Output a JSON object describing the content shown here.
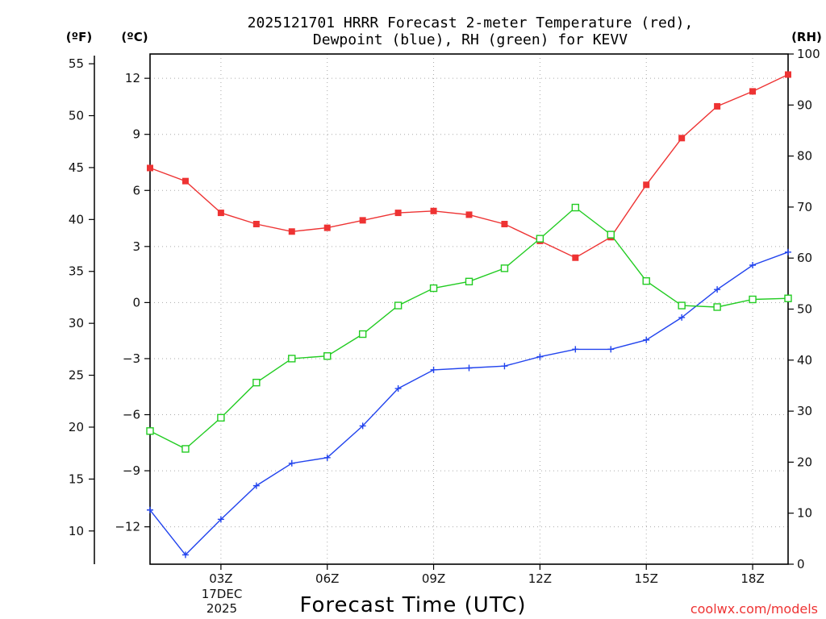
{
  "chart_data": {
    "type": "line",
    "title_line1": "2025121701 HRRR Forecast 2-meter Temperature (red),",
    "title_line2": "Dewpoint (blue), RH (green) for KEVV",
    "xlabel": "Forecast Time (UTC)",
    "credit": "coolwx.com/models",
    "axis_units": {
      "left_outer": "(ºF)",
      "left_inner": "(ºC)",
      "right": "(RH)"
    },
    "x": [
      1,
      2,
      3,
      4,
      5,
      6,
      7,
      8,
      9,
      10,
      11,
      12,
      13,
      14,
      15,
      16,
      17,
      18,
      19
    ],
    "xlim": [
      1,
      19
    ],
    "x_ticks": [
      {
        "x": 3,
        "label": "03Z"
      },
      {
        "x": 6,
        "label": "06Z"
      },
      {
        "x": 9,
        "label": "09Z"
      },
      {
        "x": 12,
        "label": "12Z"
      },
      {
        "x": 15,
        "label": "15Z"
      },
      {
        "x": 18,
        "label": "18Z"
      }
    ],
    "date_label": [
      "17DEC",
      "2025"
    ],
    "ylim_c": [
      -14.0,
      13.3
    ],
    "y_ticks_c": [
      12,
      9,
      6,
      3,
      0,
      -3,
      -6,
      -9,
      -12
    ],
    "y_tick_labels_c": [
      "12",
      "9",
      "6",
      "3",
      "0",
      "−3",
      "−6",
      "−9",
      "−12"
    ],
    "y_ticks_f": [
      55,
      50,
      45,
      40,
      35,
      30,
      25,
      20,
      15,
      10
    ],
    "ylim_rh": [
      0,
      100
    ],
    "y_ticks_rh": [
      0,
      10,
      20,
      30,
      40,
      50,
      60,
      70,
      80,
      90,
      100
    ],
    "series": [
      {
        "name": "Temperature",
        "axis": "c",
        "color": "#ee3333",
        "marker": "filled-square",
        "values": [
          7.2,
          6.5,
          4.8,
          4.2,
          3.8,
          4.0,
          4.4,
          4.8,
          4.9,
          4.7,
          4.2,
          3.3,
          2.4,
          3.5,
          6.3,
          8.8,
          10.5,
          11.3,
          12.2
        ]
      },
      {
        "name": "Dewpoint",
        "axis": "c",
        "color": "#2244ee",
        "marker": "plus",
        "values": [
          -11.1,
          -13.5,
          -11.6,
          -9.8,
          -8.6,
          -8.3,
          -6.6,
          -4.6,
          -3.6,
          -3.5,
          -3.4,
          -2.9,
          -2.5,
          -2.5,
          -2.0,
          -0.8,
          0.7,
          2.0,
          2.7
        ]
      },
      {
        "name": "RH",
        "axis": "rh",
        "color": "#22cc22",
        "marker": "open-square",
        "values": [
          26.1,
          22.6,
          28.7,
          35.6,
          40.3,
          40.8,
          45.1,
          50.7,
          54.1,
          55.4,
          58.0,
          63.8,
          69.9,
          64.6,
          55.5,
          50.7,
          50.4,
          51.9,
          52.1
        ]
      }
    ]
  }
}
